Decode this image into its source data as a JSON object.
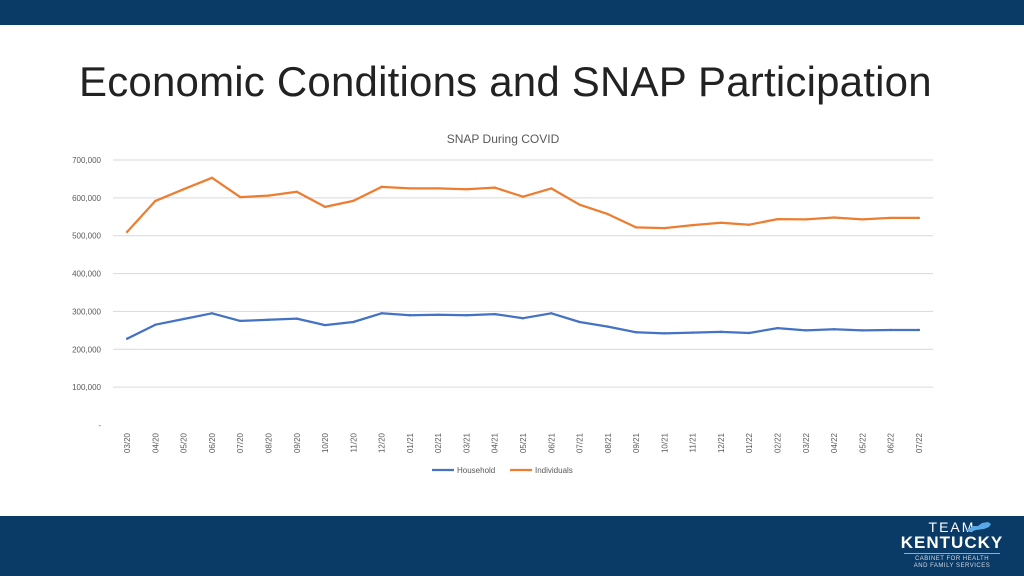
{
  "slide": {
    "title": "Economic Conditions and SNAP Participation"
  },
  "colors": {
    "banner": "#0a3a66",
    "household": "#4472c4",
    "individuals": "#ed7d31",
    "grid": "#d9d9d9",
    "axis_text": "#595959"
  },
  "logo": {
    "line1": "TEAM",
    "line2": "KENTUCKY",
    "line3": "CABINET FOR HEALTH",
    "line4": "AND FAMILY SERVICES"
  },
  "chart_data": {
    "type": "line",
    "title": "SNAP During COVID",
    "xlabel": "",
    "ylabel": "",
    "ylim": [
      0,
      700000
    ],
    "y_ticks": [
      "-",
      "100,000",
      "200,000",
      "300,000",
      "400,000",
      "500,000",
      "600,000",
      "700,000"
    ],
    "grid": true,
    "legend": "bottom",
    "categories": [
      "03/20",
      "04/20",
      "05/20",
      "06/20",
      "07/20",
      "08/20",
      "09/20",
      "10/20",
      "11/20",
      "12/20",
      "01/21",
      "02/21",
      "03/21",
      "04/21",
      "05/21",
      "06/21",
      "07/21",
      "08/21",
      "09/21",
      "10/21",
      "11/21",
      "12/21",
      "01/22",
      "02/22",
      "03/22",
      "04/22",
      "05/22",
      "06/22",
      "07/22"
    ],
    "series": [
      {
        "name": "Household",
        "values": [
          228000,
          265000,
          280000,
          295000,
          275000,
          278000,
          281000,
          264000,
          272000,
          295000,
          290000,
          291000,
          290000,
          293000,
          282000,
          295000,
          272000,
          260000,
          245000,
          242000,
          244000,
          246000,
          243000,
          256000,
          250000,
          253000,
          250000,
          251000,
          251000
        ]
      },
      {
        "name": "Individuals",
        "values": [
          510000,
          592000,
          623000,
          653000,
          602000,
          606000,
          616000,
          576000,
          592000,
          629000,
          625000,
          625000,
          623000,
          627000,
          603000,
          625000,
          582000,
          557000,
          522000,
          520000,
          528000,
          534000,
          529000,
          544000,
          543000,
          548000,
          543000,
          547000,
          547000
        ]
      }
    ]
  }
}
